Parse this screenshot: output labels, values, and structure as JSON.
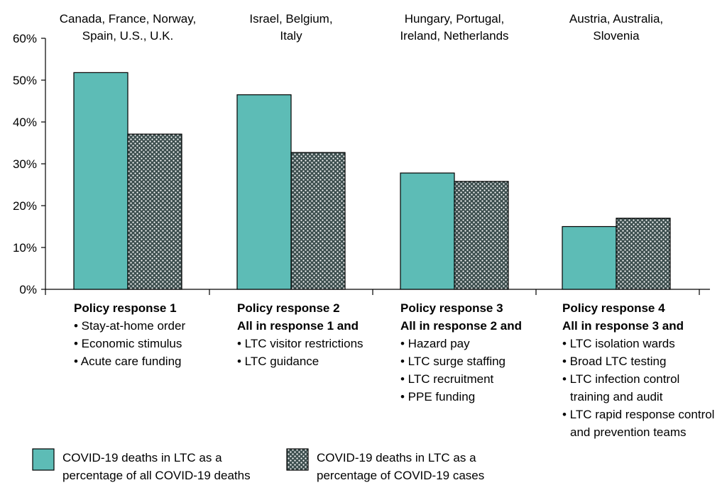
{
  "chart_data": {
    "type": "bar",
    "y_unit": "%",
    "ylim": [
      0,
      60
    ],
    "yticks": [
      "0%",
      "10%",
      "20%",
      "30%",
      "40%",
      "50%",
      "60%"
    ],
    "grid": false,
    "legend_position": "bottom",
    "colors": {
      "deaths": "#5dbcb6",
      "cases": "#3d4f4f",
      "dots": "#ffffff"
    },
    "categories": [
      {
        "countries": [
          "Canada, France, Norway,",
          "Spain, U.S., U.K."
        ],
        "policy": {
          "title": [
            "Policy response 1"
          ],
          "items": [
            [
              "• Stay-at-home order"
            ],
            [
              "• Economic stimulus"
            ],
            [
              "• Acute care funding"
            ]
          ]
        }
      },
      {
        "countries": [
          "Israel, Belgium,",
          "Italy"
        ],
        "policy": {
          "title": [
            "Policy response 2",
            "All in response 1 and"
          ],
          "items": [
            [
              "• LTC visitor restrictions"
            ],
            [
              "• LTC guidance"
            ]
          ]
        }
      },
      {
        "countries": [
          "Hungary, Portugal,",
          "Ireland, Netherlands"
        ],
        "policy": {
          "title": [
            "Policy response 3",
            "All in response 2 and"
          ],
          "items": [
            [
              "• Hazard pay"
            ],
            [
              "• LTC surge staffing"
            ],
            [
              "• LTC recruitment"
            ],
            [
              "• PPE funding"
            ]
          ]
        }
      },
      {
        "countries": [
          "Austria, Australia,",
          "Slovenia"
        ],
        "policy": {
          "title": [
            "Policy response 4",
            "All in response 3 and"
          ],
          "items": [
            [
              "• LTC isolation wards"
            ],
            [
              "• Broad LTC testing"
            ],
            [
              "• LTC infection control",
              "training and audit"
            ],
            [
              "• LTC rapid response control",
              "and prevention teams"
            ]
          ]
        }
      }
    ],
    "series": [
      {
        "key": "deaths",
        "name": [
          "COVID-19 deaths in LTC as a",
          "percentage of all COVID-19 deaths"
        ],
        "values": [
          51.8,
          46.5,
          27.8,
          15.0
        ]
      },
      {
        "key": "cases",
        "name": [
          "COVID-19 deaths in LTC as a",
          "percentage of COVID-19 cases"
        ],
        "values": [
          37.1,
          32.7,
          25.8,
          17.0
        ]
      }
    ]
  }
}
